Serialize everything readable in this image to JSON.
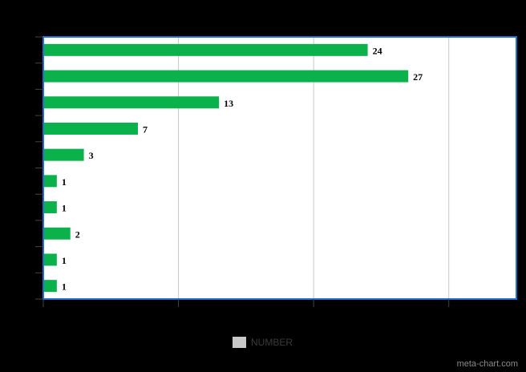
{
  "chart_data": {
    "type": "bar",
    "orientation": "horizontal",
    "categories": [
      "",
      "",
      "",
      "",
      "",
      "",
      "",
      "",
      "",
      ""
    ],
    "series": [
      {
        "name": "NUMBER",
        "values": [
          24,
          27,
          13,
          7,
          3,
          1,
          1,
          2,
          1,
          1
        ]
      }
    ],
    "title": "",
    "xlabel": "",
    "ylabel": "",
    "xlim": [
      0,
      35
    ],
    "grid": true,
    "legend_position": "bottom",
    "colors": {
      "bar": "#0bb24c",
      "plot_background": "#ffffff",
      "plot_border": "#1e6fd0",
      "gridline": "#c7c7c7",
      "page_background": "#000000",
      "legend_swatch": "#c8c8c8"
    }
  },
  "legend": {
    "label": "NUMBER"
  },
  "watermark": "meta-chart.com"
}
